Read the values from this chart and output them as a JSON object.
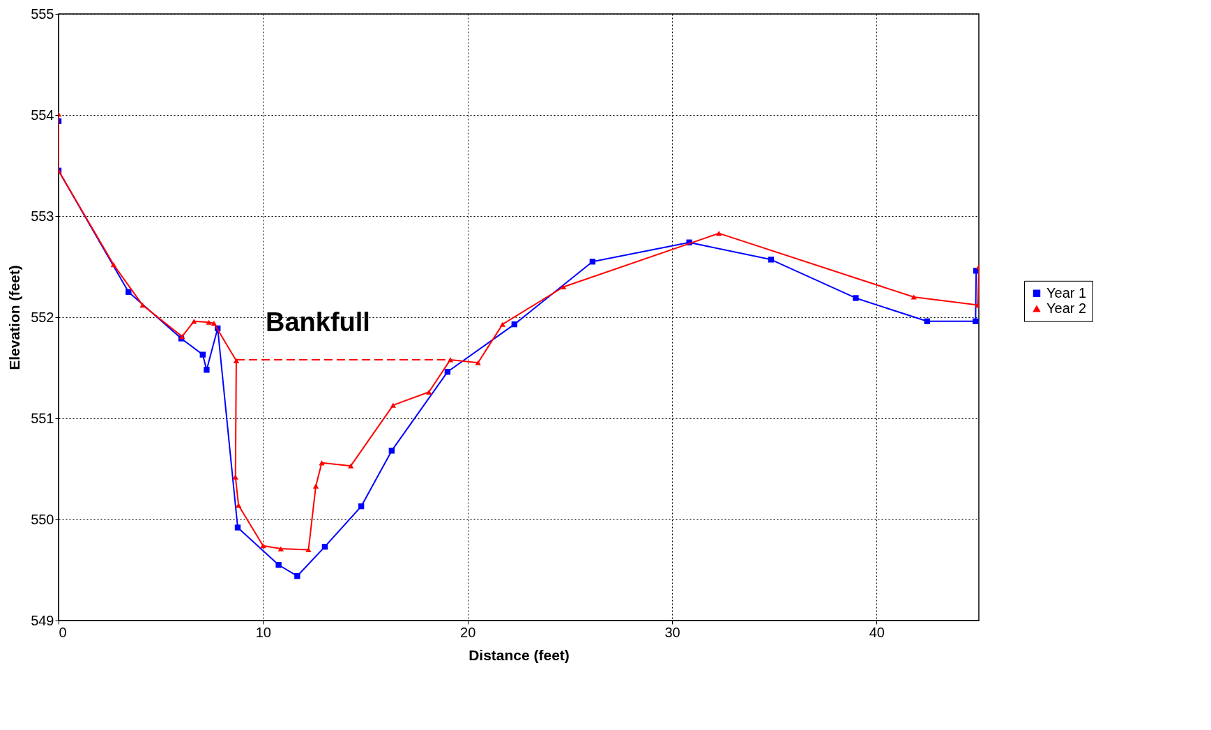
{
  "chart_data": {
    "type": "line",
    "xlabel": "Distance (feet)",
    "ylabel": "Elevation (feet)",
    "xlim": [
      0,
      45
    ],
    "xticks": [
      0,
      10,
      20,
      30,
      40
    ],
    "ylim": [
      549,
      555
    ],
    "yticks": [
      549,
      550,
      551,
      552,
      553,
      554,
      555
    ],
    "grid": true,
    "legend": "right",
    "annotations": [
      "Bankfull"
    ],
    "series": [
      {
        "name": "Year 1",
        "color": "#0000ff",
        "marker": "square",
        "line_style": "solid",
        "x": [
          0,
          0,
          3.42,
          6.0,
          7.05,
          7.24,
          7.78,
          8.76,
          10.76,
          11.67,
          13.02,
          14.8,
          16.29,
          19.02,
          22.29,
          26.11,
          30.84,
          34.84,
          38.98,
          42.47,
          44.84,
          44.87
        ],
        "values": [
          553.94,
          553.45,
          552.25,
          551.79,
          551.63,
          551.48,
          551.89,
          549.92,
          549.55,
          549.44,
          549.73,
          550.13,
          550.68,
          551.46,
          551.93,
          552.55,
          552.74,
          552.57,
          552.19,
          551.96,
          551.96,
          552.46
        ]
      },
      {
        "name": "Year 2",
        "color": "#ff0000",
        "marker": "triangle",
        "line_style": "solid",
        "x": [
          0,
          0,
          2.69,
          4.11,
          6.04,
          6.62,
          7.35,
          7.6,
          8.69,
          8.65,
          8.8,
          10.0,
          10.87,
          12.22,
          12.58,
          12.87,
          14.29,
          16.36,
          18.11,
          19.16,
          20.51,
          21.71,
          24.69,
          32.29,
          41.82,
          44.95,
          45.0
        ],
        "values": [
          554.01,
          553.45,
          552.52,
          552.12,
          551.81,
          551.96,
          551.95,
          551.94,
          551.57,
          550.42,
          550.14,
          549.74,
          549.71,
          549.7,
          550.33,
          550.56,
          550.53,
          551.13,
          551.26,
          551.58,
          551.55,
          551.93,
          552.3,
          552.83,
          552.2,
          552.12,
          552.5
        ]
      },
      {
        "color": "#ff0000",
        "marker": "none",
        "line_style": "dashed",
        "x": [
          8.69,
          19.16
        ],
        "values": [
          551.58,
          551.58
        ]
      }
    ]
  }
}
